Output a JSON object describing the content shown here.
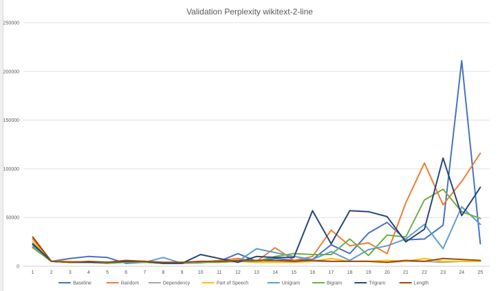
{
  "chart_data": {
    "type": "line",
    "title": "Validation Perplexity wikitext-2-line",
    "xlabel": "",
    "ylabel": "",
    "ylim": [
      0,
      250000
    ],
    "yticks": [
      0,
      50000,
      100000,
      150000,
      200000,
      250000
    ],
    "ytick_labels": [
      "0",
      "50000",
      "100000",
      "150000",
      "200000",
      "250000"
    ],
    "categories": [
      "1",
      "2",
      "3",
      "4",
      "5",
      "6",
      "7",
      "8",
      "9",
      "10",
      "11",
      "12",
      "13",
      "14",
      "15",
      "16",
      "17",
      "18",
      "19",
      "20",
      "21",
      "22",
      "23",
      "24",
      "25"
    ],
    "grid": true,
    "legend_position": "bottom",
    "series": [
      {
        "name": "Baseline",
        "color": "#4472C4",
        "values": [
          22000,
          5000,
          8000,
          10000,
          9000,
          3000,
          4000,
          3000,
          3000,
          3500,
          5000,
          13000,
          5000,
          8000,
          6000,
          7000,
          22000,
          13000,
          34000,
          45000,
          27000,
          28000,
          42000,
          211000,
          23000
        ]
      },
      {
        "name": "Random",
        "color": "#ED7D31",
        "values": [
          28000,
          5000,
          5000,
          4000,
          4000,
          5000,
          4000,
          3000,
          3500,
          4000,
          6000,
          8000,
          5000,
          19000,
          6000,
          10000,
          37000,
          21000,
          24000,
          13000,
          65000,
          106000,
          63000,
          87000,
          116000
        ]
      },
      {
        "name": "Dependency",
        "color": "#A5A5A5",
        "values": [
          20000,
          5000,
          4000,
          4000,
          3000,
          5000,
          4000,
          3000,
          3000,
          4000,
          5000,
          5000,
          4000,
          5000,
          4000,
          5000,
          5000,
          5000,
          5000,
          4000,
          5000,
          5000,
          4000,
          5000,
          5000
        ]
      },
      {
        "name": "Part of Speech",
        "color": "#FFC000",
        "values": [
          25000,
          5000,
          5000,
          4000,
          4000,
          5000,
          4000,
          3000,
          4000,
          4000,
          5000,
          5000,
          4000,
          4000,
          4000,
          5000,
          8000,
          5000,
          5000,
          6000,
          5000,
          8000,
          5000,
          5000,
          5000
        ]
      },
      {
        "name": "Unigram",
        "color": "#5B9BD5",
        "values": [
          20000,
          5000,
          4000,
          4000,
          3000,
          4000,
          4000,
          9000,
          3000,
          4000,
          4000,
          5000,
          18000,
          14000,
          10000,
          7000,
          15000,
          6000,
          17000,
          21000,
          28000,
          43000,
          18000,
          61000,
          43000
        ]
      },
      {
        "name": "Bigram",
        "color": "#70AD47",
        "values": [
          19000,
          5000,
          4000,
          4000,
          3000,
          4000,
          4000,
          3000,
          3000,
          4000,
          4000,
          5000,
          5000,
          10000,
          13000,
          12000,
          12000,
          28000,
          11000,
          32000,
          30000,
          68000,
          79000,
          56000,
          49000
        ]
      },
      {
        "name": "Trigram",
        "color": "#264478",
        "values": [
          23000,
          5000,
          4000,
          4000,
          4000,
          5000,
          5000,
          3000,
          3000,
          12000,
          8000,
          4000,
          10000,
          9000,
          9000,
          57000,
          23000,
          57000,
          56000,
          51000,
          25000,
          38000,
          111000,
          52000,
          81000
        ]
      },
      {
        "name": "Length",
        "color": "#9E480E",
        "values": [
          30000,
          5000,
          4000,
          5000,
          4000,
          6000,
          5000,
          4000,
          4000,
          5000,
          5000,
          6000,
          6000,
          6000,
          5000,
          6000,
          5000,
          5000,
          5000,
          4000,
          6000,
          5000,
          8000,
          7000,
          6000
        ]
      }
    ]
  }
}
